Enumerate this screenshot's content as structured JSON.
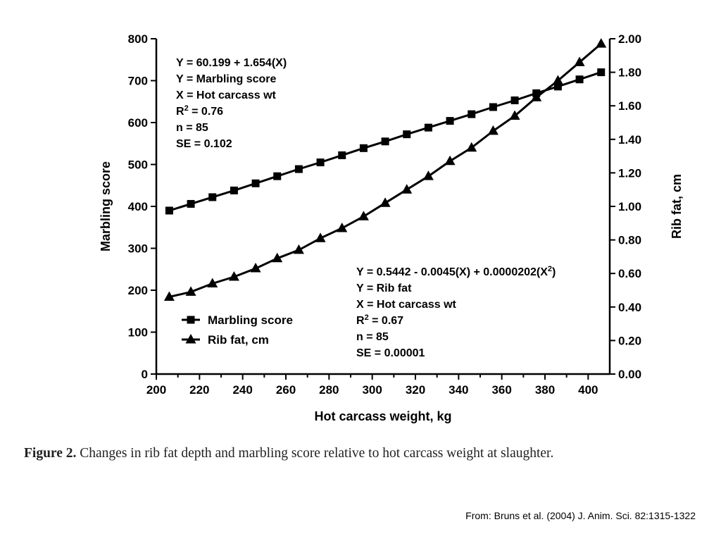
{
  "chart_data": {
    "type": "line",
    "xlabel": "Hot carcass weight, kg",
    "ylabel_left": "Marbling score",
    "ylabel_right": "Rib fat, cm",
    "xlim": [
      200,
      410
    ],
    "ylim_left": [
      0,
      800
    ],
    "ylim_right": [
      0,
      2.0
    ],
    "x_ticks": [
      "200",
      "220",
      "240",
      "260",
      "280",
      "300",
      "320",
      "340",
      "360",
      "380",
      "400"
    ],
    "y_left_ticks": [
      "0",
      "100",
      "200",
      "300",
      "400",
      "500",
      "600",
      "700",
      "800"
    ],
    "y_right_ticks": [
      "0.00",
      "0.20",
      "0.40",
      "0.60",
      "0.80",
      "1.00",
      "1.20",
      "1.40",
      "1.60",
      "1.80",
      "2.00"
    ],
    "grid": false,
    "legend_position": "lower-left",
    "x": [
      206,
      216,
      226,
      236,
      246,
      256,
      266,
      276,
      286,
      296,
      306,
      316,
      326,
      336,
      346,
      356,
      366,
      376,
      386,
      396,
      406
    ],
    "series": [
      {
        "name": "Marbling score",
        "axis": "left",
        "marker": "square",
        "values": [
          390,
          406,
          422,
          438,
          455,
          472,
          489,
          505,
          522,
          539,
          555,
          572,
          588,
          604,
          620,
          637,
          653,
          670,
          686,
          703,
          720
        ]
      },
      {
        "name": "Rib fat, cm",
        "axis": "right",
        "marker": "triangle",
        "values": [
          0.46,
          0.49,
          0.54,
          0.58,
          0.63,
          0.69,
          0.74,
          0.81,
          0.87,
          0.94,
          1.02,
          1.1,
          1.18,
          1.27,
          1.35,
          1.45,
          1.54,
          1.65,
          1.75,
          1.86,
          1.97
        ]
      }
    ],
    "annotations": {
      "marbling": [
        {
          "pre": "Y = 60.199 + 1.654(X)"
        },
        {
          "pre": "Y = Marbling score"
        },
        {
          "pre": "X = Hot carcass wt"
        },
        {
          "pre": "R",
          "sup": "2",
          "post": " = 0.76"
        },
        {
          "pre": "n = 85"
        },
        {
          "pre": "SE = 0.102"
        }
      ],
      "ribfat": [
        {
          "pre": "Y = 0.5442 - 0.0045(X) + 0.0000202(X",
          "sup": "2",
          "post": ")"
        },
        {
          "pre": "Y = Rib fat"
        },
        {
          "pre": "X = Hot carcass wt"
        },
        {
          "pre": "R",
          "sup": "2",
          "post": " = 0.67"
        },
        {
          "pre": "n = 85"
        },
        {
          "pre": "SE = 0.00001"
        }
      ]
    }
  },
  "caption": {
    "label": "Figure 2.",
    "text": " Changes in rib fat depth and marbling score relative to hot carcass weight at slaughter."
  },
  "source": "From: Bruns et al. (2004) J. Anim. Sci. 82:1315-1322"
}
